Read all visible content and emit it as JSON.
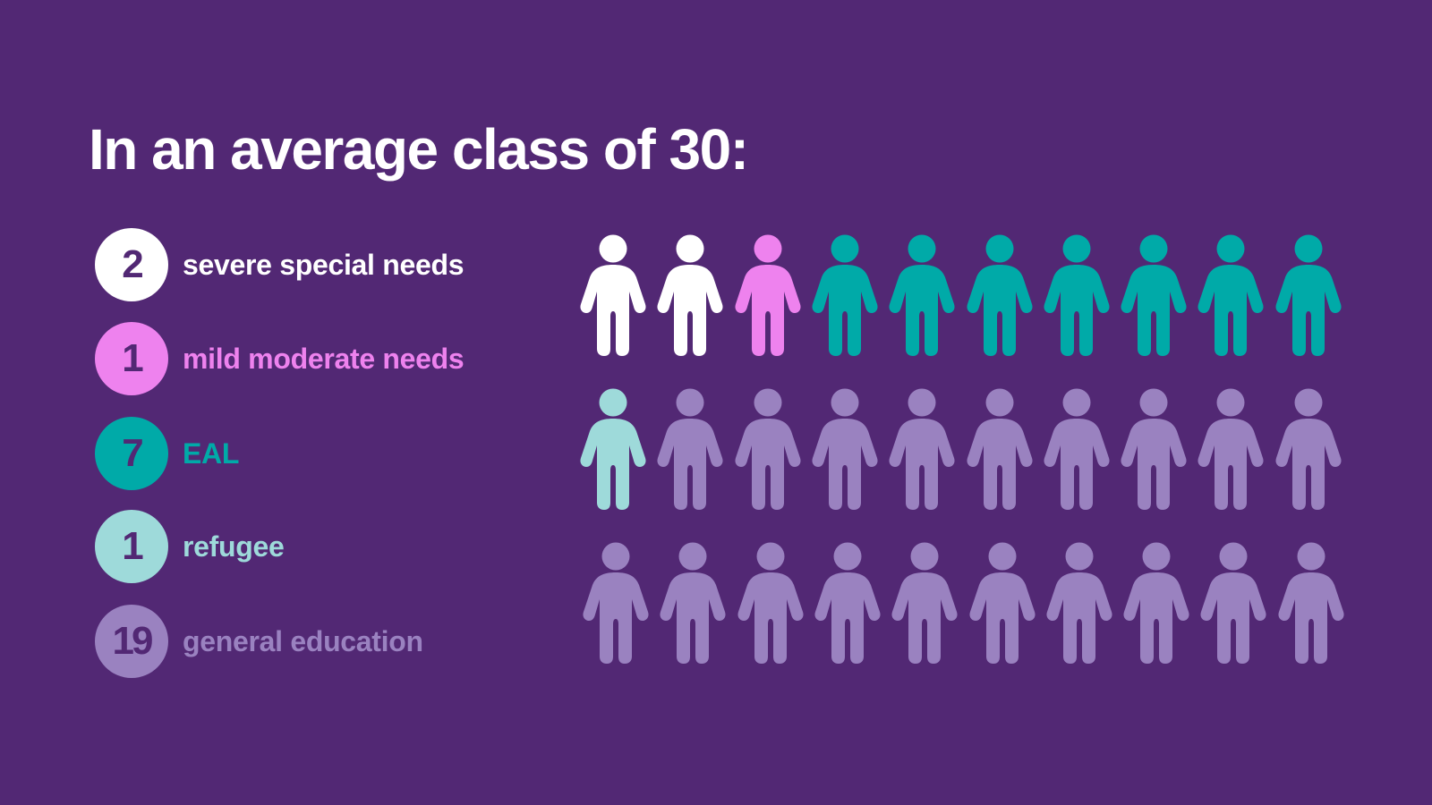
{
  "title": "In an average class of 30:",
  "colors": {
    "background": "#522874",
    "severe": "#ffffff",
    "mild": "#ee82ee",
    "eal": "#00aaa8",
    "refugee": "#9edada",
    "general": "#9a82c0"
  },
  "legend": [
    {
      "count": "2",
      "label": "severe special needs",
      "color": "#ffffff"
    },
    {
      "count": "1",
      "label": "mild moderate needs",
      "color": "#ee82ee"
    },
    {
      "count": "7",
      "label": "EAL",
      "color": "#00aaa8"
    },
    {
      "count": "1",
      "label": "refugee",
      "color": "#9edada"
    },
    {
      "count": "19",
      "label": "general education",
      "color": "#9a82c0"
    }
  ],
  "chart_data": {
    "type": "pictogram",
    "title": "In an average class of 30:",
    "total": 30,
    "categories": [
      "severe special needs",
      "mild moderate needs",
      "EAL",
      "refugee",
      "general education"
    ],
    "values": [
      2,
      1,
      7,
      1,
      19
    ],
    "colors": [
      "#ffffff",
      "#ee82ee",
      "#00aaa8",
      "#9edada",
      "#9a82c0"
    ],
    "grid": {
      "rows": 3,
      "columns": 10,
      "icon": "person-icon",
      "fill_order": "row-major"
    },
    "legend_position": "left"
  }
}
